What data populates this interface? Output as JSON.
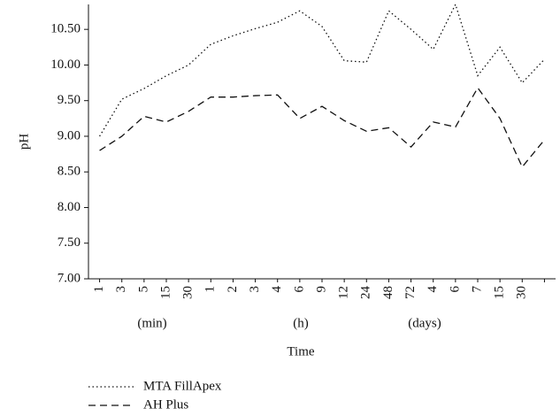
{
  "chart_data": {
    "type": "line",
    "xlabel": "Time",
    "ylabel": "pH",
    "categories": [
      "1",
      "3",
      "5",
      "15",
      "30",
      "1",
      "2",
      "3",
      "4",
      "6",
      "9",
      "12",
      "24",
      "48",
      "72",
      "4",
      "6",
      "7",
      "15",
      "30",
      null
    ],
    "annotations": [
      "(min)",
      "(h)",
      "(days)"
    ],
    "series": [
      {
        "name": "MTA FillApex",
        "color": "#111111",
        "dash": "dotted",
        "values": [
          9.0,
          9.52,
          9.67,
          9.85,
          10.0,
          10.29,
          10.41,
          10.51,
          10.6,
          10.76,
          10.54,
          10.06,
          10.04,
          10.76,
          10.5,
          10.22,
          10.85,
          9.85,
          10.25,
          9.75,
          10.08
        ]
      },
      {
        "name": "AH Plus",
        "color": "#111111",
        "dash": "dashed",
        "values": [
          8.8,
          9.0,
          9.28,
          9.2,
          9.35,
          9.55,
          9.55,
          9.57,
          9.58,
          9.25,
          9.42,
          9.22,
          9.07,
          9.12,
          8.85,
          9.2,
          9.13,
          9.68,
          9.25,
          8.57,
          8.95
        ]
      }
    ],
    "ylim": [
      7,
      10.85
    ],
    "yticks": [
      {
        "value": 7,
        "label": "7.00"
      },
      {
        "value": 7.5,
        "label": "7.50"
      },
      {
        "value": 8,
        "label": "8.00"
      },
      {
        "value": 8.5,
        "label": "8.50"
      },
      {
        "value": 9,
        "label": "9.00"
      },
      {
        "value": 9.5,
        "label": "9.50"
      },
      {
        "value": 10,
        "label": "10.00"
      },
      {
        "value": 10.5,
        "label": "10.50"
      }
    ],
    "grid": false,
    "legend": "bottom-left"
  }
}
